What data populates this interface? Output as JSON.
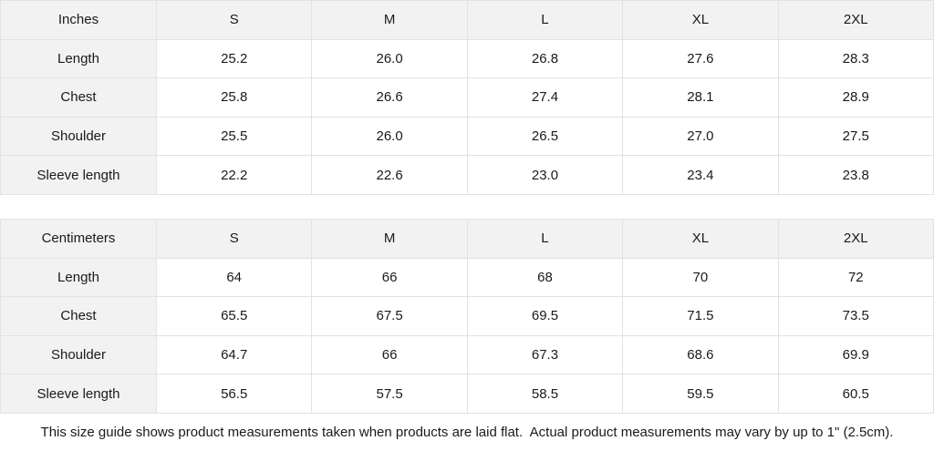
{
  "colors": {
    "header_bg": "#f2f2f2",
    "border": "#e2e2e2",
    "text": "#1a1a1a",
    "background": "#ffffff"
  },
  "footer": {
    "note": "This size guide shows product measurements taken when products are laid flat.  Actual product measurements may vary by up to 1\" (2.5cm)."
  },
  "chart_data": [
    {
      "type": "table",
      "title": "Inches",
      "columns": [
        "S",
        "M",
        "L",
        "XL",
        "2XL"
      ],
      "rows": [
        {
          "label": "Length",
          "values": [
            "25.2",
            "26.0",
            "26.8",
            "27.6",
            "28.3"
          ]
        },
        {
          "label": "Chest",
          "values": [
            "25.8",
            "26.6",
            "27.4",
            "28.1",
            "28.9"
          ]
        },
        {
          "label": "Shoulder",
          "values": [
            "25.5",
            "26.0",
            "26.5",
            "27.0",
            "27.5"
          ]
        },
        {
          "label": "Sleeve length",
          "values": [
            "22.2",
            "22.6",
            "23.0",
            "23.4",
            "23.8"
          ]
        }
      ]
    },
    {
      "type": "table",
      "title": "Centimeters",
      "columns": [
        "S",
        "M",
        "L",
        "XL",
        "2XL"
      ],
      "rows": [
        {
          "label": "Length",
          "values": [
            "64",
            "66",
            "68",
            "70",
            "72"
          ]
        },
        {
          "label": "Chest",
          "values": [
            "65.5",
            "67.5",
            "69.5",
            "71.5",
            "73.5"
          ]
        },
        {
          "label": "Shoulder",
          "values": [
            "64.7",
            "66",
            "67.3",
            "68.6",
            "69.9"
          ]
        },
        {
          "label": "Sleeve length",
          "values": [
            "56.5",
            "57.5",
            "58.5",
            "59.5",
            "60.5"
          ]
        }
      ]
    }
  ]
}
